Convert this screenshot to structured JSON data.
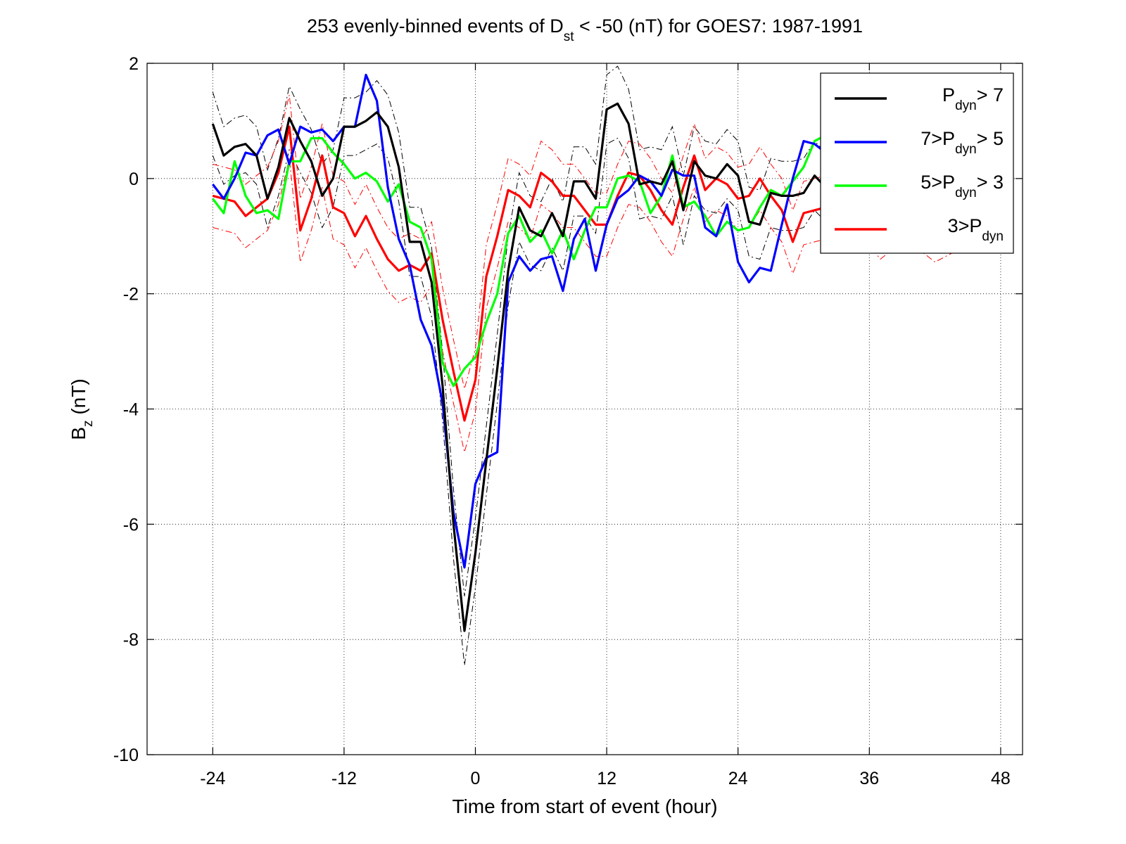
{
  "chart_data": {
    "type": "line",
    "title": "253 evenly-binned events of D",
    "title_sub": "st",
    "title_rest": " < -50 (nT) for GOES7: 1987-1991",
    "xlabel": "Time from start of event (hour)",
    "ylabel_main": "B",
    "ylabel_sub": "z",
    "ylabel_rest": " (nT)",
    "xlim": [
      -30,
      50
    ],
    "ylim": [
      -10,
      2
    ],
    "xticks": [
      -24,
      -12,
      0,
      12,
      24,
      36,
      48
    ],
    "xtick_labels": [
      "-24",
      "-12",
      "0",
      "12",
      "24",
      "36",
      "48"
    ],
    "yticks": [
      -10,
      -8,
      -6,
      -4,
      -2,
      0,
      2
    ],
    "ytick_labels": [
      "-10",
      "-8",
      "-6",
      "-4",
      "-2",
      "0",
      "2"
    ],
    "grid": true,
    "legend_position": "top-right",
    "legend": [
      {
        "pre": "",
        "p": "P",
        "sub": "dyn",
        "post": "> 7",
        "color": "#000000"
      },
      {
        "pre": "7>",
        "p": "P",
        "sub": "dyn",
        "post": "> 5",
        "color": "#0000ff"
      },
      {
        "pre": "5>",
        "p": "P",
        "sub": "dyn",
        "post": "> 3",
        "color": "#00ff00"
      },
      {
        "pre": "3>",
        "p": "P",
        "sub": "dyn",
        "post": "",
        "color": "#ff0000"
      }
    ],
    "x": [
      -24,
      -23,
      -22,
      -21,
      -20,
      -19,
      -18,
      -17,
      -16,
      -15,
      -14,
      -13,
      -12,
      -11,
      -10,
      -9,
      -8,
      -7,
      -6,
      -5,
      -4,
      -3,
      -2,
      -1,
      0,
      1,
      2,
      3,
      4,
      5,
      6,
      7,
      8,
      9,
      10,
      11,
      12,
      13,
      14,
      15,
      16,
      17,
      18,
      19,
      20,
      21,
      22,
      23,
      24,
      25,
      26,
      27,
      28,
      29,
      30,
      31,
      32,
      33,
      34,
      35,
      36,
      37,
      38,
      39,
      40,
      41,
      42,
      43,
      44
    ],
    "series": [
      {
        "color": "#000000",
        "values": [
          0.95,
          0.4,
          0.55,
          0.6,
          0.4,
          -0.35,
          0.2,
          1.05,
          0.65,
          0.3,
          -0.3,
          0.0,
          0.9,
          0.9,
          1.0,
          1.15,
          0.9,
          0.2,
          -1.1,
          -1.1,
          -1.8,
          -3.6,
          -6.0,
          -7.85,
          -6.5,
          -4.9,
          -3.3,
          -1.6,
          -0.5,
          -0.9,
          -1.0,
          -0.6,
          -1.0,
          -0.05,
          -0.05,
          -0.35,
          1.2,
          1.3,
          0.95,
          -0.1,
          -0.05,
          -0.1,
          0.3,
          -0.55,
          0.3,
          0.05,
          0.0,
          0.25,
          0.05,
          -0.75,
          -0.8,
          -0.25,
          -0.3,
          -0.3,
          -0.25,
          0.05,
          -0.15,
          -0.35,
          -0.45,
          -0.4,
          -0.45,
          -0.45,
          -0.4,
          -0.4,
          -0.45,
          -0.5,
          -0.5,
          -0.55,
          -0.55
        ],
        "lower": [
          0.4,
          -0.1,
          0.05,
          0.1,
          -0.1,
          -0.85,
          -0.3,
          0.5,
          0.1,
          -0.25,
          -0.85,
          -0.5,
          0.4,
          0.4,
          0.5,
          0.6,
          0.35,
          -0.4,
          -1.7,
          -1.7,
          -2.4,
          -4.2,
          -6.6,
          -8.45,
          -7.1,
          -5.5,
          -3.9,
          -2.2,
          -1.1,
          -1.5,
          -1.6,
          -1.2,
          -1.6,
          -0.65,
          -0.65,
          -0.95,
          0.6,
          0.7,
          0.35,
          -0.7,
          -0.65,
          -0.7,
          -0.3,
          -1.15,
          -0.3,
          -0.55,
          -0.6,
          -0.35,
          -0.55,
          -1.35,
          -1.4,
          -0.85,
          -0.9,
          -0.9,
          -0.85,
          -0.55,
          -0.75,
          -0.95,
          -1.05,
          -1.0,
          -1.05,
          -1.05,
          -1.0,
          -1.0,
          -1.05,
          -1.1,
          -1.1,
          -1.15,
          -1.15
        ],
        "upper": [
          1.5,
          0.9,
          1.05,
          1.1,
          0.9,
          0.15,
          0.7,
          1.6,
          1.2,
          0.85,
          0.25,
          0.5,
          1.4,
          1.4,
          1.5,
          1.7,
          1.45,
          0.8,
          -0.5,
          -0.5,
          -1.2,
          -3.0,
          -5.4,
          -7.25,
          -5.9,
          -4.3,
          -2.7,
          -1.0,
          0.1,
          -0.3,
          -0.4,
          0.0,
          -0.4,
          0.55,
          0.55,
          0.25,
          1.8,
          1.95,
          1.55,
          0.5,
          0.55,
          0.5,
          0.9,
          0.05,
          0.9,
          0.65,
          0.6,
          0.85,
          0.65,
          -0.15,
          -0.2,
          0.35,
          0.3,
          0.3,
          0.35,
          0.65,
          0.45,
          0.25,
          0.15,
          0.2,
          0.15,
          0.15,
          0.2,
          0.2,
          0.15,
          0.1,
          0.1,
          0.05,
          0.05
        ]
      },
      {
        "color": "#0000ff",
        "values": [
          -0.1,
          -0.35,
          0.0,
          0.45,
          0.4,
          0.75,
          0.85,
          0.25,
          0.9,
          0.8,
          0.85,
          0.65,
          0.9,
          0.9,
          1.8,
          1.35,
          -0.15,
          -1.05,
          -1.5,
          -2.45,
          -2.9,
          -3.9,
          -5.8,
          -6.75,
          -5.3,
          -4.85,
          -4.75,
          -1.8,
          -1.35,
          -1.6,
          -1.4,
          -1.35,
          -1.95,
          -1.05,
          -0.7,
          -1.6,
          -0.8,
          -0.35,
          -0.2,
          0.05,
          -0.05,
          -0.3,
          0.15,
          0.05,
          0.05,
          -0.85,
          -1.0,
          -0.45,
          -1.45,
          -1.8,
          -1.55,
          -1.6,
          -0.8,
          0.0,
          0.65,
          0.6,
          0.45,
          0.3,
          0.2,
          0.1,
          0.05,
          0.0,
          -0.05,
          -0.1,
          -0.1,
          -0.15,
          -0.15,
          -0.2,
          -0.2
        ],
        "lower": null,
        "upper": null
      },
      {
        "color": "#00ff00",
        "values": [
          -0.35,
          -0.6,
          0.3,
          -0.3,
          -0.6,
          -0.55,
          -0.7,
          0.3,
          0.3,
          0.7,
          0.7,
          0.45,
          0.25,
          0.0,
          0.1,
          -0.05,
          -0.4,
          -0.1,
          -0.75,
          -0.85,
          -1.4,
          -3.2,
          -3.6,
          -3.3,
          -3.1,
          -2.5,
          -2.0,
          -0.95,
          -0.65,
          -1.1,
          -0.9,
          -1.3,
          -0.9,
          -1.4,
          -0.9,
          -0.5,
          -0.5,
          0.0,
          0.05,
          -0.05,
          -0.6,
          -0.3,
          0.4,
          -0.5,
          -0.4,
          -0.65,
          -1.0,
          -0.75,
          -0.9,
          -0.85,
          -0.5,
          -0.2,
          -0.3,
          -0.05,
          0.2,
          0.65,
          0.75,
          0.6,
          0.5,
          0.45,
          0.4,
          0.35,
          0.3,
          0.3,
          0.25,
          0.25,
          0.2,
          0.2,
          0.15
        ],
        "lower": null,
        "upper": null
      },
      {
        "color": "#ff0000",
        "values": [
          -0.3,
          -0.35,
          -0.4,
          -0.65,
          -0.5,
          -0.35,
          0.1,
          0.9,
          -0.9,
          -0.35,
          0.4,
          -0.5,
          -0.6,
          -1.0,
          -0.65,
          -1.05,
          -1.4,
          -1.6,
          -1.5,
          -1.6,
          -1.3,
          -2.45,
          -3.35,
          -4.2,
          -3.5,
          -1.7,
          -1.0,
          -0.2,
          -0.3,
          -0.5,
          0.1,
          -0.05,
          -0.3,
          -0.3,
          -0.55,
          -0.8,
          -0.8,
          -0.3,
          0.1,
          0.05,
          -0.2,
          -0.55,
          -0.8,
          -0.15,
          0.4,
          -0.2,
          0.0,
          -0.1,
          -0.35,
          -0.3,
          0.0,
          -0.3,
          -0.55,
          -1.1,
          -0.6,
          -0.55,
          -0.5,
          -0.4,
          -0.35,
          -0.45,
          -0.6,
          -0.85,
          -0.7,
          -0.6,
          -0.65,
          -0.75,
          -0.9,
          -0.8,
          -0.7
        ],
        "lower": [
          -0.85,
          -0.9,
          -0.95,
          -1.2,
          -1.05,
          -0.9,
          -0.45,
          0.35,
          -1.45,
          -0.9,
          -0.15,
          -1.05,
          -1.15,
          -1.55,
          -1.2,
          -1.6,
          -1.95,
          -2.15,
          -2.05,
          -2.15,
          -1.85,
          -3.0,
          -3.9,
          -4.75,
          -4.05,
          -2.25,
          -1.55,
          -0.75,
          -0.85,
          -1.05,
          -0.45,
          -0.6,
          -0.85,
          -0.85,
          -1.1,
          -1.35,
          -1.35,
          -0.85,
          -0.45,
          -0.5,
          -0.75,
          -1.1,
          -1.35,
          -0.7,
          -0.15,
          -0.75,
          -0.55,
          -0.65,
          -0.9,
          -0.85,
          -0.55,
          -0.85,
          -1.1,
          -1.65,
          -1.15,
          -1.1,
          -1.05,
          -0.95,
          -0.9,
          -1.0,
          -1.15,
          -1.4,
          -1.25,
          -1.15,
          -1.2,
          -1.3,
          -1.45,
          -1.35,
          -1.25
        ],
        "upper": [
          0.25,
          0.2,
          0.15,
          -0.1,
          0.05,
          0.2,
          0.65,
          1.45,
          -0.35,
          0.2,
          0.95,
          0.05,
          -0.05,
          -0.45,
          -0.1,
          -0.5,
          -0.85,
          -1.05,
          -0.95,
          -1.05,
          -0.75,
          -1.9,
          -2.8,
          -3.65,
          -2.95,
          -1.15,
          -0.45,
          0.35,
          0.25,
          0.05,
          0.65,
          0.5,
          0.25,
          0.25,
          0.0,
          -0.25,
          -0.25,
          0.25,
          0.65,
          0.6,
          0.35,
          0.0,
          -0.25,
          0.4,
          0.95,
          0.35,
          0.55,
          0.45,
          0.2,
          0.25,
          0.55,
          0.25,
          0.0,
          -0.55,
          -0.05,
          0.0,
          0.05,
          0.15,
          0.2,
          0.1,
          -0.05,
          -0.3,
          -0.15,
          -0.05,
          -0.1,
          -0.2,
          -0.35,
          -0.25,
          -0.15
        ]
      }
    ]
  }
}
